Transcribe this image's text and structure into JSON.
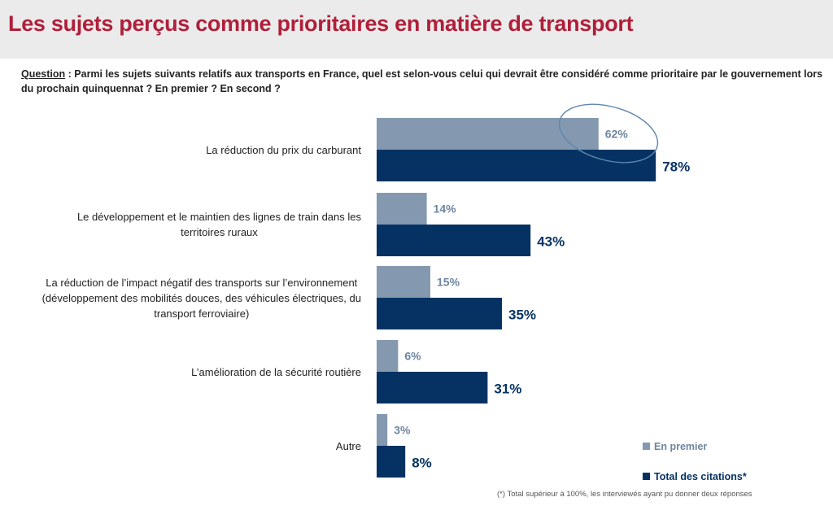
{
  "header": {
    "title": "Les sujets perçus comme prioritaires en matière de transport"
  },
  "question": {
    "label": "Question",
    "text": " :  Parmi les sujets suivants relatifs aux transports en France, quel est selon-vous celui qui devrait être considéré comme prioritaire par le gouvernement lors du prochain quinquennat ? En premier ? En second ?"
  },
  "chart_data": {
    "type": "bar",
    "orientation": "horizontal",
    "categories": [
      "La réduction du prix du carburant",
      "Le développement et le maintien des lignes de train dans les territoires ruraux",
      "La réduction de l’impact négatif des transports sur l’environnement (développement des mobilités douces, des véhicules électriques, du transport ferroviaire)",
      "L’amélioration de la sécurité routière",
      "Autre"
    ],
    "series": [
      {
        "name": "En premier",
        "values": [
          62,
          14,
          15,
          6,
          3
        ],
        "labels": [
          "62%",
          "14%",
          "15%",
          "6%",
          "3%"
        ],
        "color": "#8499b0"
      },
      {
        "name": "Total des citations*",
        "values": [
          78,
          43,
          35,
          31,
          8
        ],
        "labels": [
          "78%",
          "43%",
          "35%",
          "31%",
          "8%"
        ],
        "color": "#063263"
      }
    ],
    "xlim": [
      0,
      100
    ],
    "grid": false,
    "legend_position": "bottom-right",
    "highlight": {
      "category_index": 0,
      "shape": "ellipse",
      "color": "#5d86ad"
    }
  },
  "footnote": "(*) Total supérieur à 100%, les interviewés ayant pu donner deux réponses"
}
